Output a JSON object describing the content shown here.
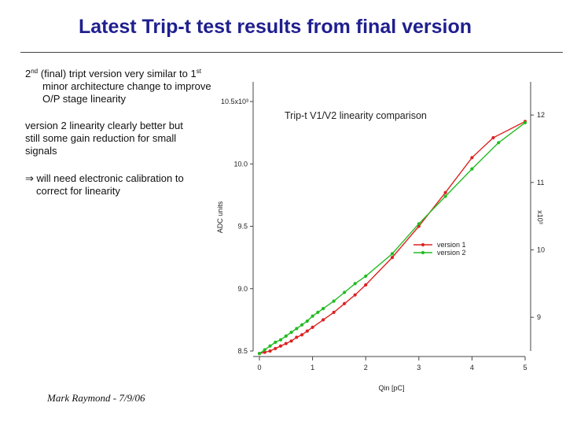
{
  "slide": {
    "title": "Latest Trip-t test results from final version",
    "bullet1": {
      "line1_pre": "2",
      "line1_sup1": "nd",
      "line1_mid": " (final) tript version very similar to 1",
      "line1_sup2": "st",
      "line2": "minor architecture change to improve",
      "line3": "O/P stage linearity"
    },
    "bullet2": {
      "line1": "version 2 linearity clearly better but",
      "line2": "still some gain reduction for small",
      "line3": "signals"
    },
    "bullet3": {
      "arrow": "⇒",
      "line1": " will need electronic calibration to",
      "line2": "correct for linearity"
    },
    "footer": "Mark Raymond - 7/9/06"
  },
  "chart_data": {
    "type": "line",
    "title": "Trip-t V1/V2 linearity comparison",
    "xlabel": "Qin [pC]",
    "ylabel": "ADC units",
    "ylabel_right": "x10³",
    "xlim": [
      0,
      5
    ],
    "ylim": [
      8.5,
      10.5
    ],
    "y2lim": [
      8.5,
      12.2
    ],
    "x_ticks": [
      "0",
      "1",
      "2",
      "3",
      "4",
      "5"
    ],
    "y_ticks": [
      "8.5",
      "9.0",
      "9.5",
      "10.0",
      "10.5x10³"
    ],
    "y2_ticks": [
      "9",
      "10",
      "11",
      "12"
    ],
    "legend_position": "center-right",
    "grid": false,
    "series": [
      {
        "name": "version 1",
        "color": "#dd2222",
        "x": [
          0.0,
          0.1,
          0.2,
          0.3,
          0.4,
          0.5,
          0.6,
          0.7,
          0.8,
          0.9,
          1.0,
          1.2,
          1.4,
          1.6,
          1.8,
          2.0,
          2.5,
          3.0,
          3.5,
          4.0,
          4.4,
          5.0
        ],
        "y": [
          8.48,
          8.49,
          8.5,
          8.52,
          8.54,
          8.56,
          8.58,
          8.61,
          8.63,
          8.66,
          8.69,
          8.75,
          8.81,
          8.88,
          8.95,
          9.03,
          9.25,
          9.5,
          9.77,
          10.05,
          10.21,
          10.34
        ]
      },
      {
        "name": "version 2",
        "color": "#22bb22",
        "x": [
          0.0,
          0.1,
          0.2,
          0.3,
          0.4,
          0.5,
          0.6,
          0.7,
          0.8,
          0.9,
          1.0,
          1.1,
          1.2,
          1.4,
          1.6,
          1.8,
          2.0,
          2.5,
          3.0,
          3.5,
          4.0,
          4.5,
          5.0
        ],
        "y": [
          8.48,
          8.51,
          8.54,
          8.57,
          8.59,
          8.62,
          8.65,
          8.68,
          8.71,
          8.74,
          8.78,
          8.81,
          8.84,
          8.9,
          8.97,
          9.04,
          9.1,
          9.28,
          9.52,
          9.74,
          9.96,
          10.17,
          10.33
        ]
      }
    ]
  }
}
